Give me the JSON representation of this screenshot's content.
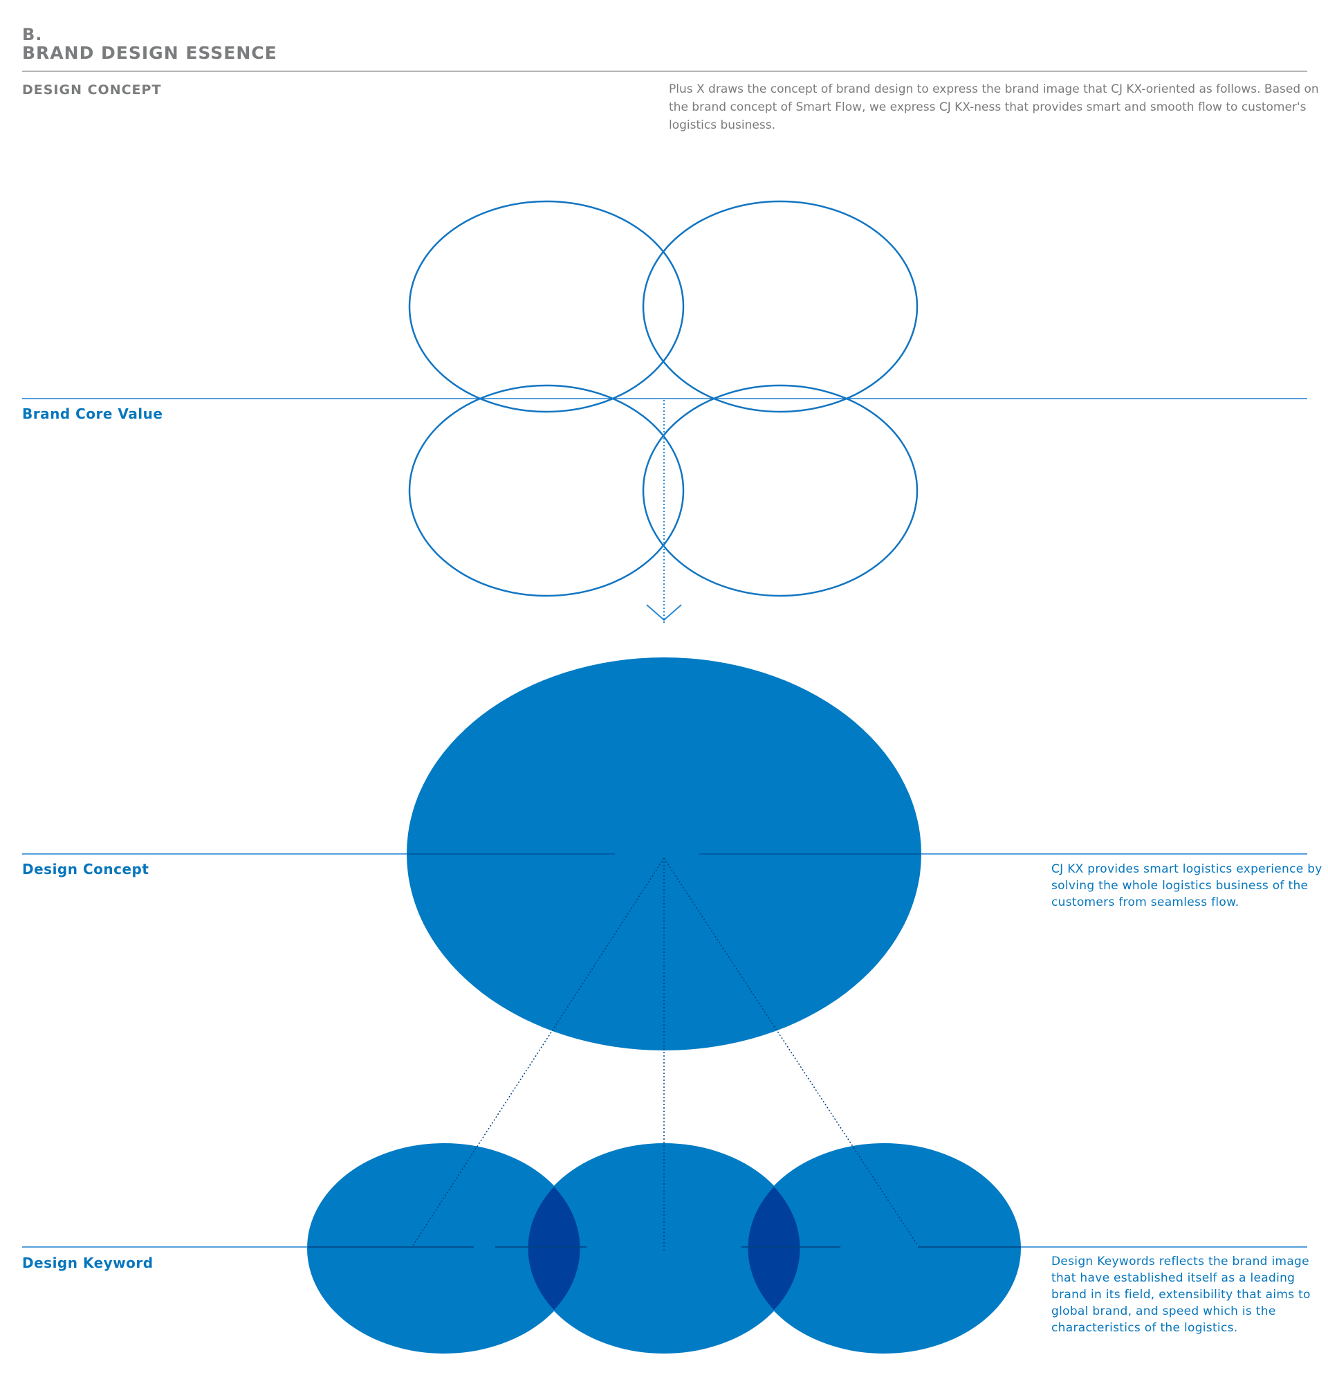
{
  "header": {
    "section_letter": "B.",
    "title": "BRAND DESIGN ESSENCE",
    "subheading": "DESIGN CONCEPT",
    "intro": "Plus X draws the concept of brand design to express the brand image that CJ KX-oriented as follows. Based on the brand concept of Smart Flow, we express CJ KX-ness that provides smart and smooth flow to customer's logistics business."
  },
  "rows": {
    "brand_core_value": {
      "label": "Brand Core Value"
    },
    "design_concept": {
      "label": "Design Concept",
      "description": "CJ KX provides smart logistics experience by solving the whole logistics business of the customers from seamless flow."
    },
    "design_keyword": {
      "label": "Design Keyword",
      "description": "Design Keywords reflects the brand image that have established itself as a leading brand in its field, extensibility that aims to global brand, and speed which is the characteristics of the logistics."
    }
  },
  "colors": {
    "brand_blue": "#007bc4",
    "overlap_blue": "#003f9b",
    "line_blue": "#1e7fd0",
    "heading_gray": "#7b7c7e"
  }
}
